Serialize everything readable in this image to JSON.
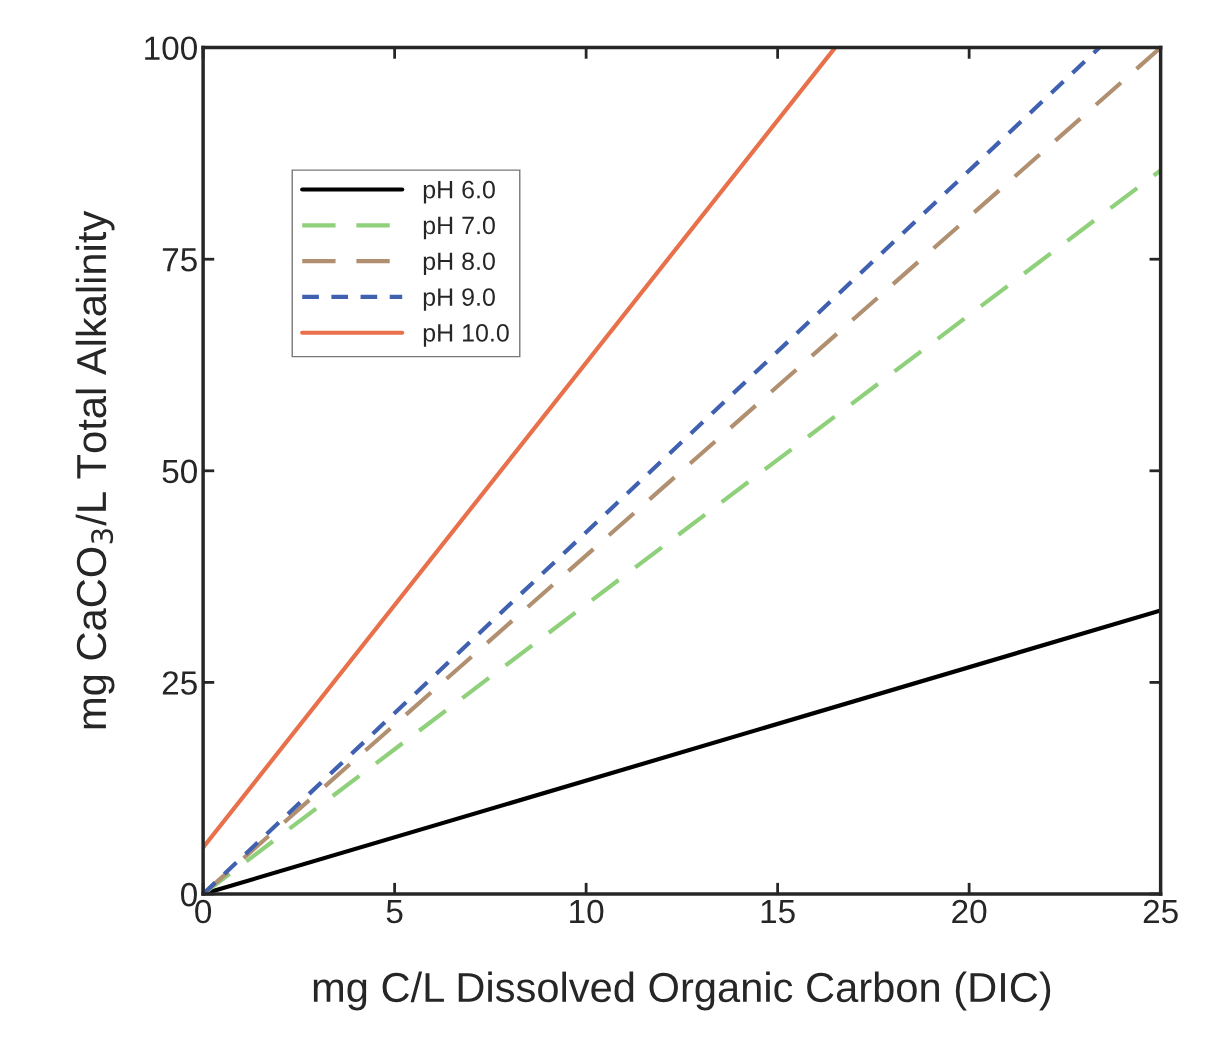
{
  "chart_data": {
    "type": "line",
    "xlabel": "mg C/L Dissolved Organic Carbon (DIC)",
    "ylabel": "mg CaCO$_{3}$/L Total Alkalinity",
    "xlim": [
      0,
      25
    ],
    "ylim": [
      0,
      100
    ],
    "xticks": [
      0,
      5,
      10,
      15,
      20,
      25
    ],
    "yticks": [
      0,
      25,
      50,
      75,
      100
    ],
    "grid": false,
    "legend": "top left",
    "marker": "none",
    "series": [
      {
        "name": "pH 6.0",
        "color": "#000000",
        "line_style": "solid",
        "x": [
          0,
          25
        ],
        "values": [
          0,
          33.5
        ]
      },
      {
        "name": "pH 7.0",
        "color": "#8fd07a",
        "line_style": "dashed",
        "x": [
          0,
          25
        ],
        "values": [
          0,
          85.5
        ]
      },
      {
        "name": "pH 8.0",
        "color": "#b09070",
        "line_style": "dashed",
        "x": [
          0,
          25
        ],
        "values": [
          0,
          100
        ]
      },
      {
        "name": "pH 9.0",
        "color": "#4060b0",
        "line_style": "dotted",
        "x": [
          0,
          23.4
        ],
        "values": [
          0,
          100
        ]
      },
      {
        "name": "pH 10.0",
        "color": "#e8704a",
        "line_style": "solid",
        "x": [
          0,
          16.5
        ],
        "values": [
          5.5,
          100
        ]
      }
    ]
  }
}
